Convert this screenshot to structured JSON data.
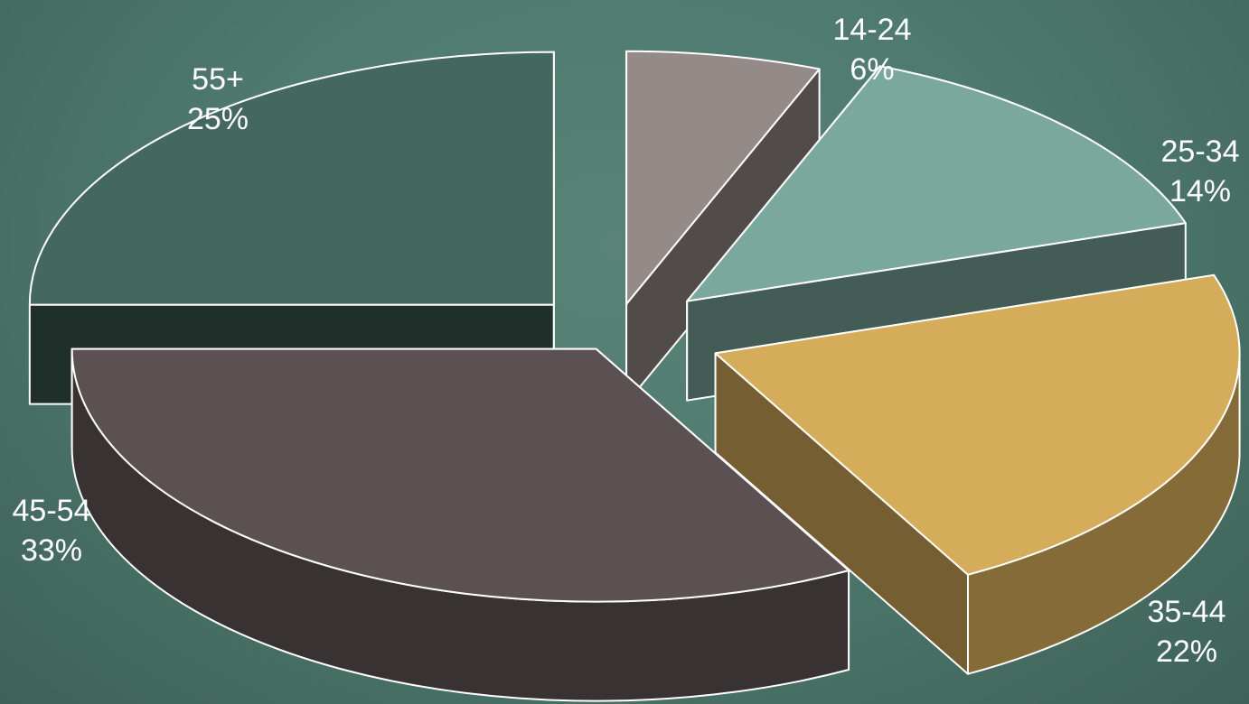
{
  "chart_data": {
    "type": "pie",
    "style": "3d-exploded",
    "slices": [
      {
        "label": "14-24",
        "value": 6,
        "display": "6%",
        "color": "#948a87"
      },
      {
        "label": "25-34",
        "value": 14,
        "display": "14%",
        "color": "#7aa89d"
      },
      {
        "label": "35-44",
        "value": 22,
        "display": "22%",
        "color": "#d5ad5a"
      },
      {
        "label": "45-54",
        "value": 33,
        "display": "33%",
        "color": "#5b5152"
      },
      {
        "label": "55+",
        "value": 25,
        "display": "25%",
        "color": "#45685e"
      }
    ],
    "legend": "none",
    "background_color": "#4f7a6f",
    "label_color": "#ffffff"
  }
}
